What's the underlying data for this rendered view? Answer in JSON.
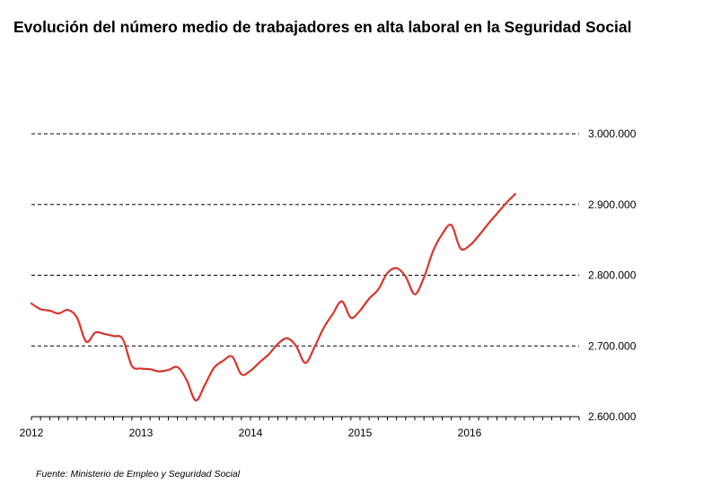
{
  "title": "Evolución del número medio de trabajadores en alta laboral en la Seguridad Social",
  "source": "Fuente: Ministerio de Empleo y Seguridad Social",
  "colors": {
    "line": "#d9342b",
    "grid": "#000000",
    "axis": "#000000"
  },
  "chart_data": {
    "type": "line",
    "title": "Evolución del número medio de trabajadores en alta laboral en la Seguridad Social",
    "xlabel": "",
    "ylabel": "",
    "ylim": [
      2600000,
      3000000
    ],
    "xlim": [
      "2012-01",
      "2017-01"
    ],
    "grid": "horizontal dashed",
    "legend": "none",
    "yticks": [
      "2.600.000",
      "2.700.000",
      "2.800.000",
      "2.900.000",
      "3.000.000"
    ],
    "ytick_values": [
      2600000,
      2700000,
      2800000,
      2900000,
      3000000
    ],
    "xticks": [
      "2012",
      "2013",
      "2014",
      "2015",
      "2016"
    ],
    "series": [
      {
        "x": [
          "2012-01",
          "2012-02",
          "2012-03",
          "2012-04",
          "2012-05",
          "2012-06",
          "2012-07",
          "2012-08",
          "2012-09",
          "2012-10",
          "2012-11",
          "2012-12",
          "2013-01",
          "2013-02",
          "2013-03",
          "2013-04",
          "2013-05",
          "2013-06",
          "2013-07",
          "2013-08",
          "2013-09",
          "2013-10",
          "2013-11",
          "2013-12",
          "2014-01",
          "2014-02",
          "2014-03",
          "2014-04",
          "2014-05",
          "2014-06",
          "2014-07",
          "2014-08",
          "2014-09",
          "2014-10",
          "2014-11",
          "2014-12",
          "2015-01",
          "2015-02",
          "2015-03",
          "2015-04",
          "2015-05",
          "2015-06",
          "2015-07",
          "2015-08",
          "2015-09",
          "2015-10",
          "2015-11",
          "2015-12",
          "2016-01",
          "2016-02",
          "2016-03",
          "2016-04",
          "2016-05",
          "2016-06"
        ],
        "values": [
          2760000,
          2752000,
          2750000,
          2746000,
          2751000,
          2740000,
          2706000,
          2719000,
          2717000,
          2714000,
          2710000,
          2672000,
          2668000,
          2667000,
          2664000,
          2666000,
          2670000,
          2652000,
          2623000,
          2645000,
          2669000,
          2679000,
          2685000,
          2660000,
          2665000,
          2677000,
          2688000,
          2703000,
          2711000,
          2700000,
          2676000,
          2698000,
          2725000,
          2745000,
          2763000,
          2740000,
          2750000,
          2767000,
          2780000,
          2803000,
          2810000,
          2798000,
          2773000,
          2797000,
          2834000,
          2858000,
          2871000,
          2838000,
          2842000,
          2856000,
          2872000,
          2887000,
          2902000,
          2915000
        ]
      }
    ]
  }
}
